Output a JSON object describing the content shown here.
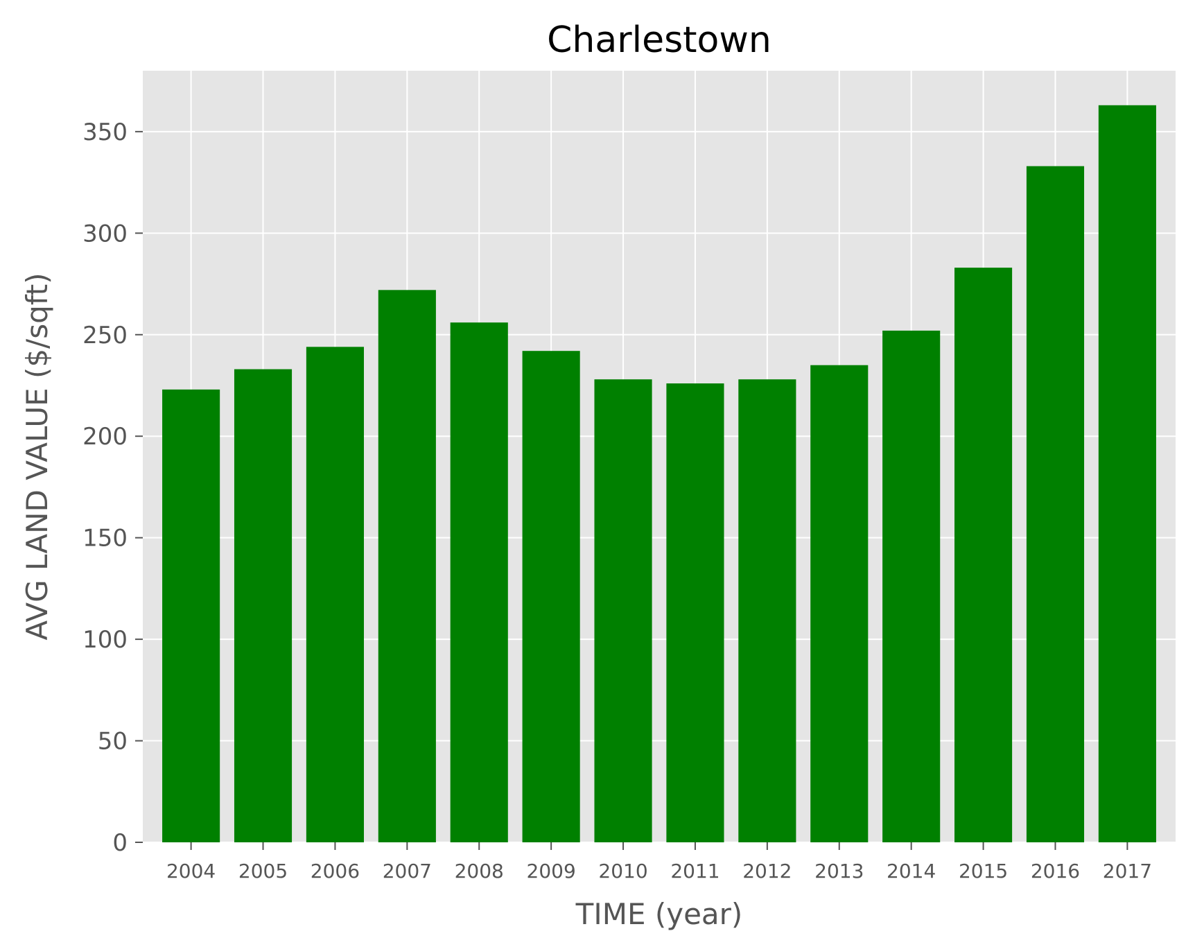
{
  "chart_data": {
    "type": "bar",
    "title": "Charlestown",
    "xlabel": "TIME (year)",
    "ylabel": "AVG LAND VALUE ($/sqft)",
    "categories": [
      "2004",
      "2005",
      "2006",
      "2007",
      "2008",
      "2009",
      "2010",
      "2011",
      "2012",
      "2013",
      "2014",
      "2015",
      "2016",
      "2017"
    ],
    "values": [
      223,
      233,
      244,
      272,
      256,
      242,
      228,
      226,
      228,
      235,
      252,
      283,
      333,
      363
    ],
    "ylim": [
      0,
      380
    ],
    "yticks": [
      0,
      50,
      100,
      150,
      200,
      250,
      300,
      350
    ],
    "grid": true,
    "legend": "none",
    "colors": {
      "bar": "#008000",
      "plot_background": "#e5e5e5",
      "grid": "#ffffff",
      "text": "#555555",
      "title": "#000000"
    }
  }
}
